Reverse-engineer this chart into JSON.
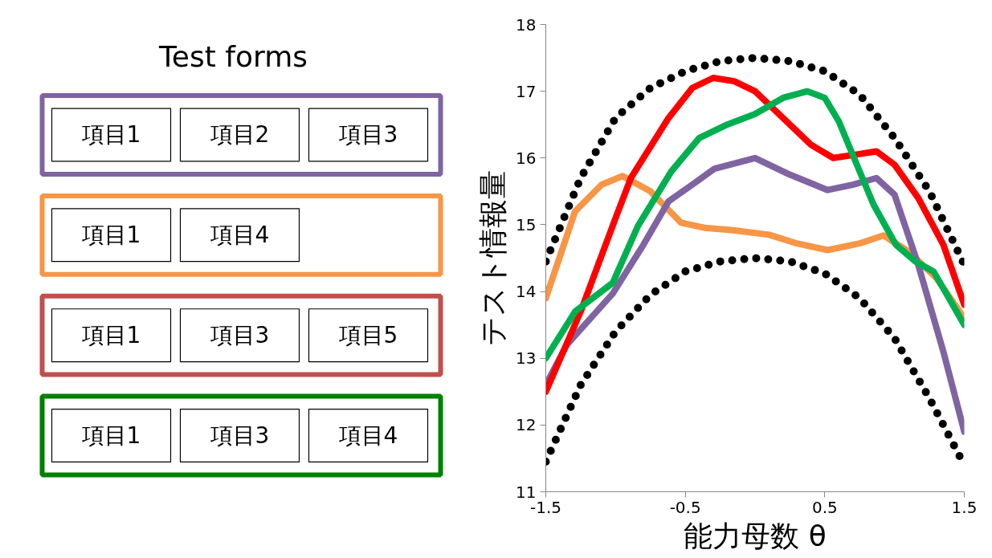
{
  "chart_data": [
    {
      "type": "other",
      "title": "Test forms",
      "cell_labels": [
        [
          "項目1",
          "項目2",
          "項目3"
        ],
        [
          "項目1",
          "項目4"
        ],
        [
          "項目1",
          "項目3",
          "項目5"
        ],
        [
          "項目1",
          "項目3",
          "項目4"
        ]
      ],
      "colors": [
        "#8064a2",
        "#f79646",
        "#c0504d",
        "#008000"
      ]
    },
    {
      "type": "line",
      "xlabel": "能力母数 θ",
      "ylabel": "テスト情報量",
      "xlim": [
        -1.5,
        1.5
      ],
      "ylim": [
        11,
        18
      ],
      "xticks": [
        -1.5,
        -0.5,
        0.5,
        1.5
      ],
      "yticks": [
        11,
        12,
        13,
        14,
        15,
        16,
        17,
        18
      ],
      "grid": false,
      "marker": "none",
      "line_style": "solid",
      "series": [
        {
          "color": "#000000",
          "line_style": "dotted",
          "x": [
            -1.5,
            -1.25,
            -1.0,
            -0.75,
            -0.5,
            -0.25,
            0,
            0.25,
            0.5,
            0.75,
            1.0,
            1.25,
            1.5
          ],
          "values": [
            14.45,
            15.7,
            16.6,
            17.05,
            17.3,
            17.45,
            17.5,
            17.45,
            17.3,
            16.95,
            16.3,
            15.5,
            14.4
          ]
        },
        {
          "color": "#000000",
          "line_style": "dotted",
          "x": [
            -1.5,
            -1.25,
            -1.0,
            -0.75,
            -0.5,
            -0.25,
            0,
            0.25,
            0.5,
            0.75,
            1.0,
            1.25,
            1.5
          ],
          "values": [
            11.45,
            12.6,
            13.4,
            13.95,
            14.3,
            14.45,
            14.5,
            14.45,
            14.27,
            13.9,
            13.3,
            12.4,
            11.4
          ]
        },
        {
          "color": "#f79646",
          "x": [
            -1.5,
            -1.29,
            -1.1,
            -0.95,
            -0.75,
            -0.53,
            -0.35,
            -0.17,
            0.1,
            0.3,
            0.52,
            0.75,
            0.92,
            1.1,
            1.3,
            1.5
          ],
          "values": [
            13.9,
            15.2,
            15.6,
            15.73,
            15.5,
            15.03,
            14.95,
            14.92,
            14.85,
            14.72,
            14.62,
            14.72,
            14.84,
            14.6,
            14.2,
            13.6
          ]
        },
        {
          "color": "#8064a2",
          "x": [
            -1.5,
            -1.35,
            -1.02,
            -0.8,
            -0.62,
            -0.45,
            -0.29,
            0,
            0.25,
            0.52,
            0.7,
            0.87,
            1.0,
            1.17,
            1.35,
            1.5
          ],
          "values": [
            12.6,
            13.2,
            13.97,
            14.7,
            15.35,
            15.6,
            15.84,
            16.0,
            15.75,
            15.52,
            15.6,
            15.7,
            15.45,
            14.4,
            13.1,
            11.9
          ]
        },
        {
          "color": "#ff0000",
          "x": [
            -1.5,
            -1.25,
            -1.0,
            -0.89,
            -0.62,
            -0.45,
            -0.3,
            -0.15,
            0,
            0.2,
            0.4,
            0.56,
            0.72,
            0.87,
            1.0,
            1.17,
            1.35,
            1.5
          ],
          "values": [
            12.5,
            13.7,
            15.1,
            15.7,
            16.6,
            17.05,
            17.2,
            17.15,
            17.0,
            16.6,
            16.2,
            16.0,
            16.05,
            16.1,
            15.9,
            15.4,
            14.7,
            13.8
          ]
        },
        {
          "color": "#00b050",
          "x": [
            -1.5,
            -1.29,
            -1.02,
            -0.84,
            -0.6,
            -0.4,
            -0.2,
            0,
            0.2,
            0.375,
            0.5,
            0.6,
            0.72,
            0.85,
            1.01,
            1.15,
            1.28,
            1.5
          ],
          "values": [
            13.0,
            13.7,
            14.13,
            14.98,
            15.8,
            16.3,
            16.5,
            16.66,
            16.9,
            17.0,
            16.9,
            16.55,
            15.95,
            15.3,
            14.7,
            14.45,
            14.3,
            13.5
          ]
        }
      ]
    }
  ]
}
